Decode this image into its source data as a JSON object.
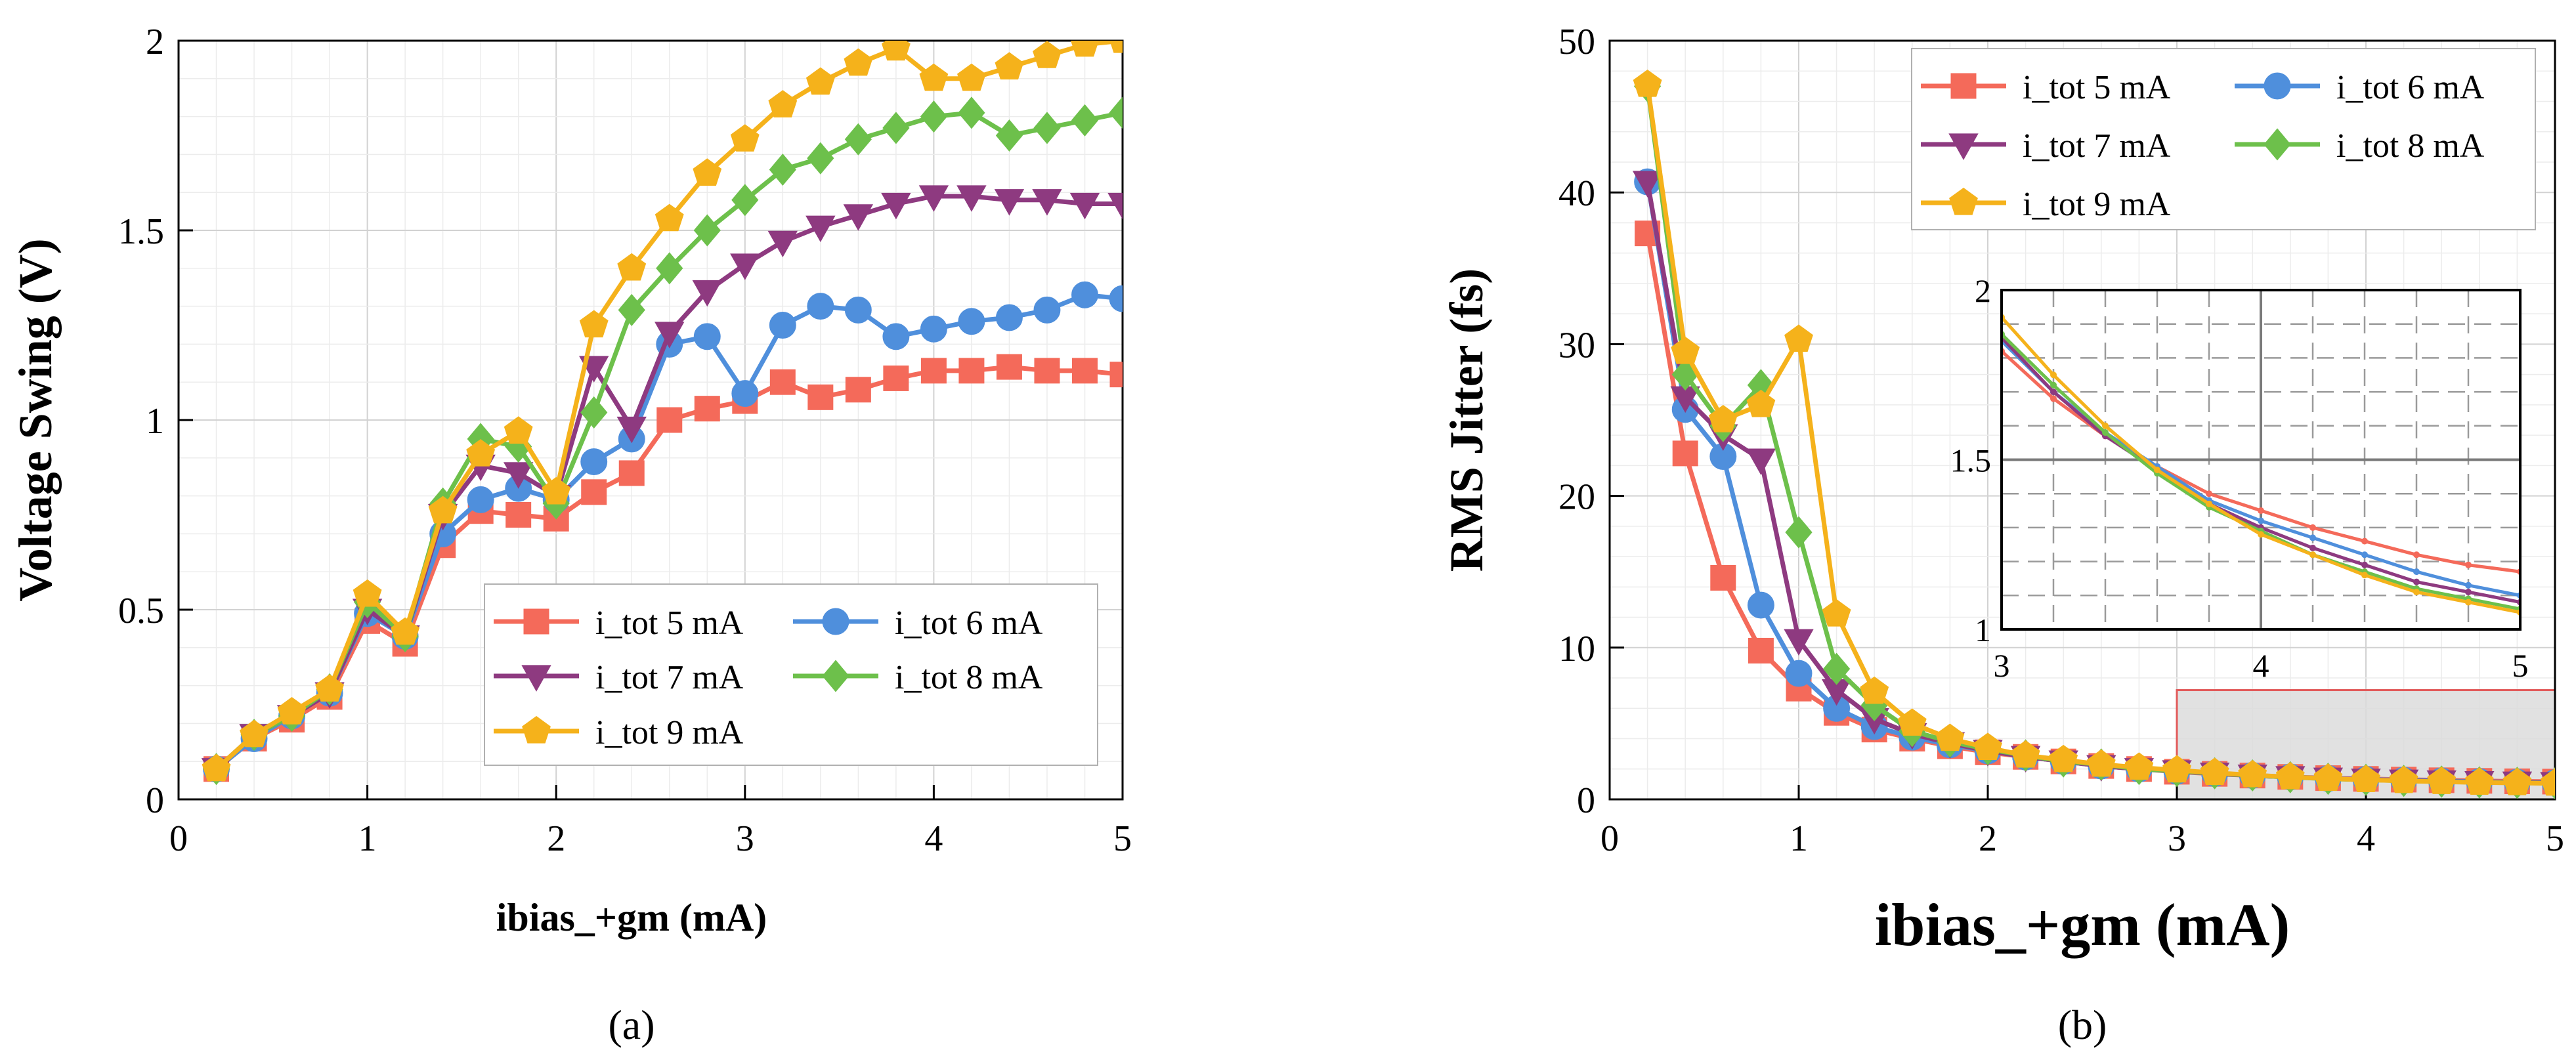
{
  "chart_data": [
    {
      "type": "line",
      "panel_label": "(a)",
      "xlabel": "ibias_+gm (mA)",
      "ylabel": "Voltage Swing (V)",
      "xlim": [
        0,
        5
      ],
      "ylim": [
        0,
        2
      ],
      "xticks": [
        0,
        1,
        2,
        3,
        4,
        5
      ],
      "xtick_labels": [
        "0",
        "1",
        "2",
        "3",
        "4",
        "5"
      ],
      "yticks": [
        0,
        0.5,
        1,
        1.5,
        2
      ],
      "ytick_labels": [
        "0",
        "0.5",
        "1",
        "1.5",
        "2"
      ],
      "grid": true,
      "legend_position": "lower-right",
      "x": [
        0.2,
        0.4,
        0.6,
        0.8,
        1.0,
        1.2,
        1.4,
        1.6,
        1.8,
        2.0,
        2.2,
        2.4,
        2.6,
        2.8,
        3.0,
        3.2,
        3.4,
        3.6,
        3.8,
        4.0,
        4.2,
        4.4,
        4.6,
        4.8,
        5.0
      ],
      "series": [
        {
          "name": "i_tot 5 mA",
          "color": "#F46A5A",
          "marker": "square",
          "values": [
            0.08,
            0.16,
            0.21,
            0.27,
            0.47,
            0.41,
            0.67,
            0.76,
            0.75,
            0.74,
            0.81,
            0.86,
            1.0,
            1.03,
            1.05,
            1.1,
            1.06,
            1.08,
            1.11,
            1.13,
            1.13,
            1.14,
            1.13,
            1.13,
            1.12
          ]
        },
        {
          "name": "i_tot 6 mA",
          "color": "#4F8FDC",
          "marker": "circle",
          "values": [
            0.08,
            0.16,
            0.22,
            0.28,
            0.49,
            0.43,
            0.7,
            0.79,
            0.82,
            0.79,
            0.89,
            0.95,
            1.2,
            1.22,
            1.07,
            1.25,
            1.3,
            1.29,
            1.22,
            1.24,
            1.26,
            1.27,
            1.29,
            1.33,
            1.32
          ]
        },
        {
          "name": "i_tot 7 mA",
          "color": "#8E3A80",
          "marker": "triangle-down",
          "values": [
            0.08,
            0.17,
            0.22,
            0.28,
            0.5,
            0.43,
            0.75,
            0.88,
            0.86,
            0.8,
            1.14,
            0.98,
            1.23,
            1.34,
            1.41,
            1.47,
            1.51,
            1.54,
            1.57,
            1.59,
            1.59,
            1.58,
            1.58,
            1.57,
            1.57
          ]
        },
        {
          "name": "i_tot 8 mA",
          "color": "#6DC04B",
          "marker": "diamond",
          "values": [
            0.08,
            0.17,
            0.22,
            0.29,
            0.52,
            0.43,
            0.78,
            0.95,
            0.93,
            0.78,
            1.02,
            1.29,
            1.4,
            1.5,
            1.58,
            1.66,
            1.69,
            1.74,
            1.77,
            1.8,
            1.81,
            1.75,
            1.77,
            1.79,
            1.81
          ]
        },
        {
          "name": "i_tot 9 mA",
          "color": "#F5B21B",
          "marker": "pentagon",
          "values": [
            0.08,
            0.17,
            0.23,
            0.29,
            0.54,
            0.44,
            0.76,
            0.91,
            0.97,
            0.81,
            1.25,
            1.4,
            1.53,
            1.65,
            1.74,
            1.83,
            1.89,
            1.94,
            1.98,
            1.9,
            1.9,
            1.93,
            1.96,
            1.99,
            2.0
          ]
        }
      ]
    },
    {
      "type": "line",
      "panel_label": "(b)",
      "xlabel": "ibias_+gm (mA)",
      "ylabel": "RMS Jitter (fs)",
      "xlim": [
        0,
        5
      ],
      "ylim": [
        0,
        50
      ],
      "xticks": [
        0,
        1,
        2,
        3,
        4,
        5
      ],
      "xtick_labels": [
        "0",
        "1",
        "2",
        "3",
        "4",
        "5"
      ],
      "yticks": [
        0,
        10,
        20,
        30,
        40,
        50
      ],
      "ytick_labels": [
        "0",
        "10",
        "20",
        "30",
        "40",
        "50"
      ],
      "grid": true,
      "legend_position": "top-right",
      "x": [
        0.2,
        0.4,
        0.6,
        0.8,
        1.0,
        1.2,
        1.4,
        1.6,
        1.8,
        2.0,
        2.2,
        2.4,
        2.6,
        2.8,
        3.0,
        3.2,
        3.4,
        3.6,
        3.8,
        4.0,
        4.2,
        4.4,
        4.6,
        4.8,
        5.0
      ],
      "series": [
        {
          "name": "i_tot 5 mA",
          "color": "#F46A5A",
          "marker": "square",
          "values": [
            37.3,
            22.8,
            14.6,
            9.8,
            7.3,
            5.7,
            4.6,
            4.0,
            3.5,
            3.1,
            2.8,
            2.5,
            2.2,
            2.0,
            1.82,
            1.68,
            1.57,
            1.48,
            1.4,
            1.35,
            1.3,
            1.26,
            1.22,
            1.19,
            1.17
          ]
        },
        {
          "name": "i_tot 6 mA",
          "color": "#4F8FDC",
          "marker": "circle",
          "values": [
            40.7,
            25.7,
            22.6,
            12.8,
            8.3,
            6.0,
            4.8,
            4.1,
            3.6,
            3.2,
            2.8,
            2.5,
            2.2,
            2.0,
            1.85,
            1.7,
            1.58,
            1.48,
            1.38,
            1.32,
            1.27,
            1.22,
            1.17,
            1.13,
            1.1
          ]
        },
        {
          "name": "i_tot 7 mA",
          "color": "#8E3A80",
          "marker": "triangle-down",
          "values": [
            40.7,
            26.5,
            24.0,
            22.4,
            10.5,
            7.2,
            5.3,
            4.3,
            3.7,
            3.2,
            2.8,
            2.5,
            2.2,
            2.0,
            1.86,
            1.7,
            1.57,
            1.47,
            1.37,
            1.3,
            1.24,
            1.19,
            1.14,
            1.11,
            1.08
          ]
        },
        {
          "name": "i_tot 8 mA",
          "color": "#6DC04B",
          "marker": "diamond",
          "values": [
            47.0,
            28.0,
            24.6,
            27.3,
            17.6,
            8.6,
            6.2,
            4.5,
            3.8,
            3.3,
            2.9,
            2.5,
            2.3,
            2.0,
            1.87,
            1.72,
            1.58,
            1.46,
            1.36,
            1.29,
            1.22,
            1.17,
            1.12,
            1.09,
            1.06
          ]
        },
        {
          "name": "i_tot 9 mA",
          "color": "#F5B21B",
          "marker": "pentagon",
          "values": [
            47.1,
            29.5,
            25.0,
            26.0,
            30.3,
            12.2,
            7.1,
            5.0,
            4.0,
            3.4,
            2.9,
            2.6,
            2.3,
            2.1,
            1.92,
            1.75,
            1.6,
            1.47,
            1.37,
            1.28,
            1.22,
            1.16,
            1.11,
            1.08,
            1.05
          ]
        }
      ],
      "highlight_region": {
        "x": [
          3,
          5
        ],
        "y": [
          0,
          7.2
        ],
        "color": "#dcdcdc",
        "border": "#e25a5a"
      },
      "inset": {
        "xlim": [
          3,
          5
        ],
        "ylim": [
          1,
          2
        ],
        "xticks": [
          3,
          4,
          5
        ],
        "xtick_labels": [
          "3",
          "4",
          "5"
        ],
        "yticks": [
          1,
          1.5,
          2
        ],
        "ytick_labels": [
          "1",
          "1.5",
          "2"
        ]
      }
    }
  ]
}
